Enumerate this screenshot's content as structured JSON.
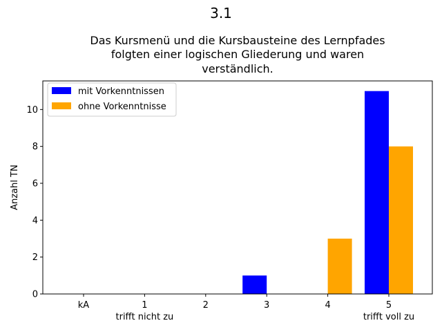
{
  "chart_data": {
    "type": "bar",
    "suptitle": "3.1",
    "title_lines": [
      "Das Kursmenü und die Kursbausteine des Lernpfades",
      "folgten einer logischen Gliederung und waren",
      "verständlich."
    ],
    "xlabel": "",
    "ylabel": "Anzahl TN",
    "categories": [
      "kA",
      "1",
      "2",
      "3",
      "4",
      "5"
    ],
    "category_sublabels": {
      "1": "trifft nicht zu",
      "5": "trifft voll zu"
    },
    "series": [
      {
        "name": "mit Vorkenntnissen",
        "color": "#0000ff",
        "values": [
          0,
          0,
          0,
          1,
          0,
          11
        ]
      },
      {
        "name": "ohne Vorkenntnisse",
        "color": "#ffa500",
        "values": [
          0,
          0,
          0,
          0,
          3,
          8
        ]
      }
    ],
    "ylim": [
      0,
      11.55
    ],
    "yticks": [
      0,
      2,
      4,
      6,
      8,
      10
    ],
    "grid": false,
    "legend_position": "upper-left"
  }
}
